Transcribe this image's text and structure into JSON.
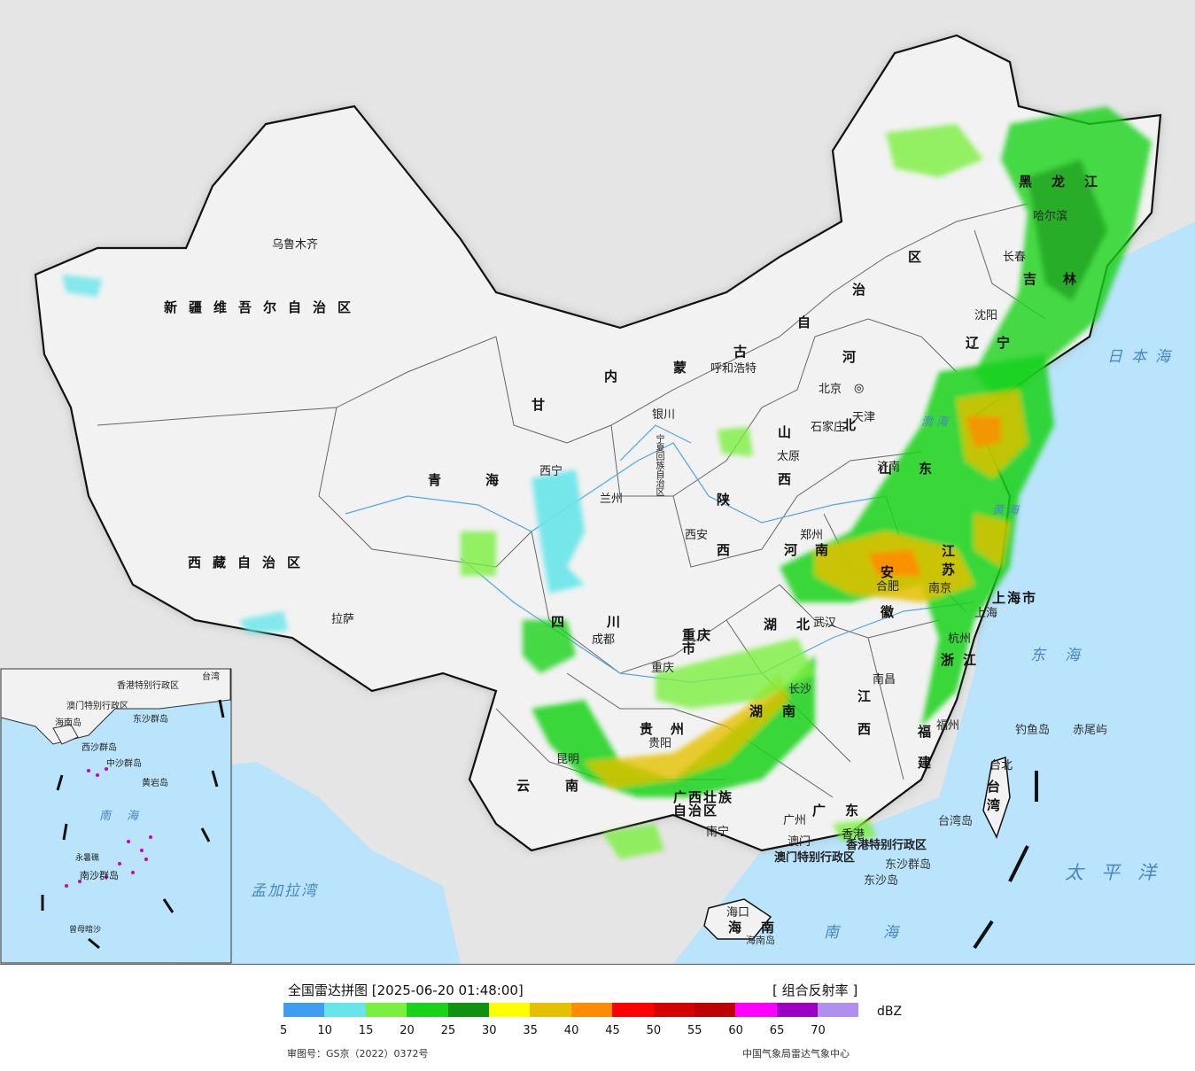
{
  "map": {
    "regions": [
      {
        "id": "xinjiang",
        "text": "新疆维吾尔自治区"
      },
      {
        "id": "xizang",
        "text": "西藏自治区"
      },
      {
        "id": "qinghai",
        "text": "青海"
      },
      {
        "id": "gansu",
        "text": "甘"
      },
      {
        "id": "sichuan",
        "text": "四川"
      },
      {
        "id": "yunnan",
        "text": "云南"
      },
      {
        "id": "neimenggu1",
        "text": "内"
      },
      {
        "id": "neimenggu2",
        "text": "蒙"
      },
      {
        "id": "neimenggu3",
        "text": "古"
      },
      {
        "id": "neimenggu4",
        "text": "自"
      },
      {
        "id": "neimenggu5",
        "text": "治"
      },
      {
        "id": "neimenggu6",
        "text": "区"
      },
      {
        "id": "heilongjiang",
        "text": "黑龙江"
      },
      {
        "id": "jilin",
        "text": "吉林"
      },
      {
        "id": "liaoning",
        "text": "辽宁"
      },
      {
        "id": "hebei",
        "text": "河北"
      },
      {
        "id": "shanxi",
        "text": "山西"
      },
      {
        "id": "shaanxi",
        "text": "陕西"
      },
      {
        "id": "henan",
        "text": "河南"
      },
      {
        "id": "shandong",
        "text": "山东"
      },
      {
        "id": "jiangsu",
        "text": "江苏"
      },
      {
        "id": "anhui",
        "text": "安徽"
      },
      {
        "id": "hubei",
        "text": "湖北"
      },
      {
        "id": "hunan",
        "text": "湖南"
      },
      {
        "id": "jiangxi",
        "text": "江西"
      },
      {
        "id": "zhejiang",
        "text": "浙江"
      },
      {
        "id": "fujian",
        "text": "福建"
      },
      {
        "id": "guizhou",
        "text": "贵州"
      },
      {
        "id": "guangxi",
        "text": "广西壮族自治区"
      },
      {
        "id": "guangdong",
        "text": "广东"
      },
      {
        "id": "hainan",
        "text": "海南"
      },
      {
        "id": "taiwan",
        "text": "台湾"
      },
      {
        "id": "chongqing",
        "text": "重庆市"
      },
      {
        "id": "shanghai",
        "text": "上海市"
      },
      {
        "id": "ningxia",
        "text": "宁夏回族自治区"
      },
      {
        "id": "hk",
        "text": "香港特别行政区"
      },
      {
        "id": "macau",
        "text": "澳门特别行政区"
      }
    ],
    "cities": [
      {
        "id": "urumqi",
        "text": "乌鲁木齐"
      },
      {
        "id": "lhasa",
        "text": "拉萨"
      },
      {
        "id": "xining",
        "text": "西宁"
      },
      {
        "id": "lanzhou",
        "text": "兰州"
      },
      {
        "id": "yinchuan",
        "text": "银川"
      },
      {
        "id": "hohhot",
        "text": "呼和浩特"
      },
      {
        "id": "beijing",
        "text": "北京"
      },
      {
        "id": "tianjin",
        "text": "天津"
      },
      {
        "id": "shijiazhuang",
        "text": "石家庄"
      },
      {
        "id": "taiyuan",
        "text": "太原"
      },
      {
        "id": "xian",
        "text": "西安"
      },
      {
        "id": "zhengzhou",
        "text": "郑州"
      },
      {
        "id": "chengdu",
        "text": "成都"
      },
      {
        "id": "chongqing",
        "text": "重庆"
      },
      {
        "id": "guiyang",
        "text": "贵阳"
      },
      {
        "id": "kunming",
        "text": "昆明"
      },
      {
        "id": "nanning",
        "text": "南宁"
      },
      {
        "id": "guangzhou",
        "text": "广州"
      },
      {
        "id": "macau",
        "text": "澳门"
      },
      {
        "id": "hongkong",
        "text": "香港"
      },
      {
        "id": "haikou",
        "text": "海口"
      },
      {
        "id": "harbin",
        "text": "哈尔滨"
      },
      {
        "id": "changchun",
        "text": "长春"
      },
      {
        "id": "shenyang",
        "text": "沈阳"
      },
      {
        "id": "jinan",
        "text": "济南"
      },
      {
        "id": "hefei",
        "text": "合肥"
      },
      {
        "id": "nanjing",
        "text": "南京"
      },
      {
        "id": "shanghai",
        "text": "上海"
      },
      {
        "id": "hangzhou",
        "text": "杭州"
      },
      {
        "id": "nanchang",
        "text": "南昌"
      },
      {
        "id": "fuzhou",
        "text": "福州"
      },
      {
        "id": "taipei",
        "text": "台北"
      },
      {
        "id": "wuhan",
        "text": "武汉"
      },
      {
        "id": "changsha",
        "text": "长沙"
      }
    ],
    "islands": [
      {
        "id": "diaoyu",
        "text": "钓鱼岛"
      },
      {
        "id": "chiwei",
        "text": "赤尾屿"
      },
      {
        "id": "taiwan_island",
        "text": "台湾岛"
      },
      {
        "id": "dongsha_islands",
        "text": "东沙群岛"
      },
      {
        "id": "dongsha",
        "text": "东沙岛"
      },
      {
        "id": "hainan_island",
        "text": "海南岛"
      }
    ],
    "seas": [
      {
        "id": "japan_sea",
        "text": "日本海"
      },
      {
        "id": "east_sea",
        "text": "东海"
      },
      {
        "id": "pacific",
        "text": "太平洋"
      },
      {
        "id": "south_sea",
        "text": "南海"
      },
      {
        "id": "bay_bengal",
        "text": "孟加拉湾"
      },
      {
        "id": "bohai",
        "text": "渤海"
      },
      {
        "id": "yellow_sea",
        "text": "黄海"
      }
    ],
    "inset": {
      "labels": [
        {
          "id": "i1",
          "text": "香港特别行政区"
        },
        {
          "id": "i2",
          "text": "澳门特别行政区"
        },
        {
          "id": "i3",
          "text": "东沙群岛"
        },
        {
          "id": "i4",
          "text": "海南岛"
        },
        {
          "id": "i5",
          "text": "西沙群岛"
        },
        {
          "id": "i6",
          "text": "中沙群岛"
        },
        {
          "id": "i7",
          "text": "黄岩岛"
        },
        {
          "id": "i8",
          "text": "南海"
        },
        {
          "id": "i9",
          "text": "南沙群岛"
        },
        {
          "id": "i10",
          "text": "永暑礁"
        },
        {
          "id": "i11",
          "text": "曾母暗沙"
        },
        {
          "id": "i12",
          "text": "台湾"
        }
      ]
    }
  },
  "legend": {
    "title": "全国雷达拼图 [2025-06-20 01:48:00]",
    "product": "[ 组合反射率 ]",
    "unit": "dBZ",
    "colors": [
      "#3f9ef2",
      "#66e6ea",
      "#7aef3e",
      "#19d21a",
      "#119112",
      "#ffff00",
      "#e5c000",
      "#ff8c00",
      "#ff0000",
      "#d50000",
      "#bd0000",
      "#ff00ff",
      "#9b00c3",
      "#b18fef"
    ],
    "ticks": [
      "5",
      "10",
      "15",
      "20",
      "25",
      "30",
      "35",
      "40",
      "45",
      "50",
      "55",
      "60",
      "65",
      "70"
    ],
    "review_no": "审图号：GS京（2022）0372号",
    "source": "中国气象局雷达气象中心"
  }
}
